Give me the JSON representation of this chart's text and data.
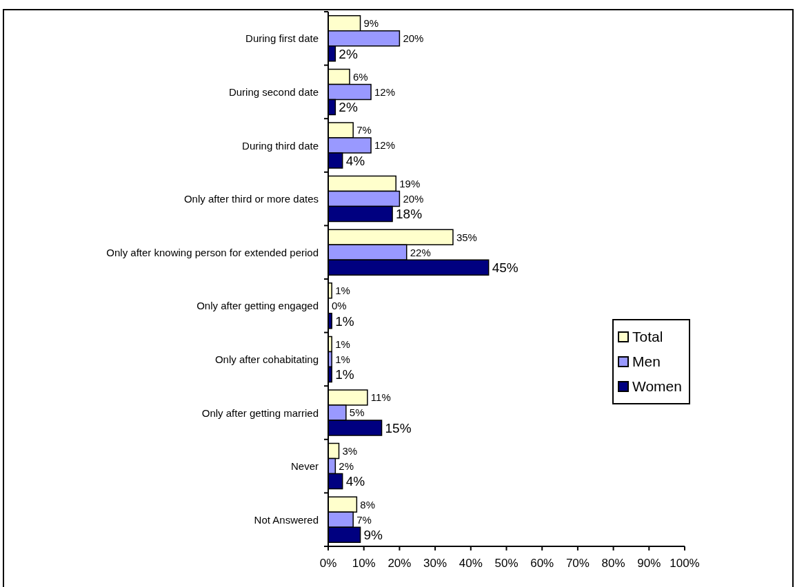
{
  "chart_data": {
    "type": "bar",
    "orientation": "horizontal",
    "legend": "right",
    "categories": [
      "During first date",
      "During second date",
      "During third date",
      "Only after third or more dates",
      "Only after knowing person for extended period",
      "Only after getting engaged",
      "Only after cohabitating",
      "Only after getting married",
      "Never",
      "Not Answered"
    ],
    "series": [
      {
        "name": "Total",
        "color": "#ffffcc",
        "values": [
          9,
          6,
          7,
          19,
          35,
          1,
          1,
          11,
          3,
          8
        ],
        "value_labels": [
          "9%",
          "6%",
          "7%",
          "19%",
          "35%",
          "1%",
          "1%",
          "11%",
          "3%",
          "8%"
        ]
      },
      {
        "name": "Men",
        "color": "#9999ff",
        "values": [
          20,
          12,
          12,
          20,
          22,
          0,
          1,
          5,
          2,
          7
        ],
        "value_labels": [
          "20%",
          "12%",
          "12%",
          "20%",
          "22%",
          "0%",
          "1%",
          "5%",
          "2%",
          "7%"
        ]
      },
      {
        "name": "Women",
        "color": "#000080",
        "values": [
          2,
          2,
          4,
          18,
          45,
          1,
          1,
          15,
          4,
          9
        ],
        "value_labels": [
          "2%",
          "2%",
          "4%",
          "18%",
          "45%",
          "1%",
          "1%",
          "15%",
          "4%",
          "9%"
        ]
      }
    ],
    "xlim": [
      0,
      100
    ],
    "xticks": [
      {
        "value": 0,
        "label": "0%"
      },
      {
        "value": 10,
        "label": "10%"
      },
      {
        "value": 20,
        "label": "20%"
      },
      {
        "value": 30,
        "label": "30%"
      },
      {
        "value": 40,
        "label": "40%"
      },
      {
        "value": 50,
        "label": "50%"
      },
      {
        "value": 60,
        "label": "60%"
      },
      {
        "value": 70,
        "label": "70%"
      },
      {
        "value": 80,
        "label": "80%"
      },
      {
        "value": 90,
        "label": "90%"
      },
      {
        "value": 100,
        "label": "100%"
      }
    ]
  }
}
